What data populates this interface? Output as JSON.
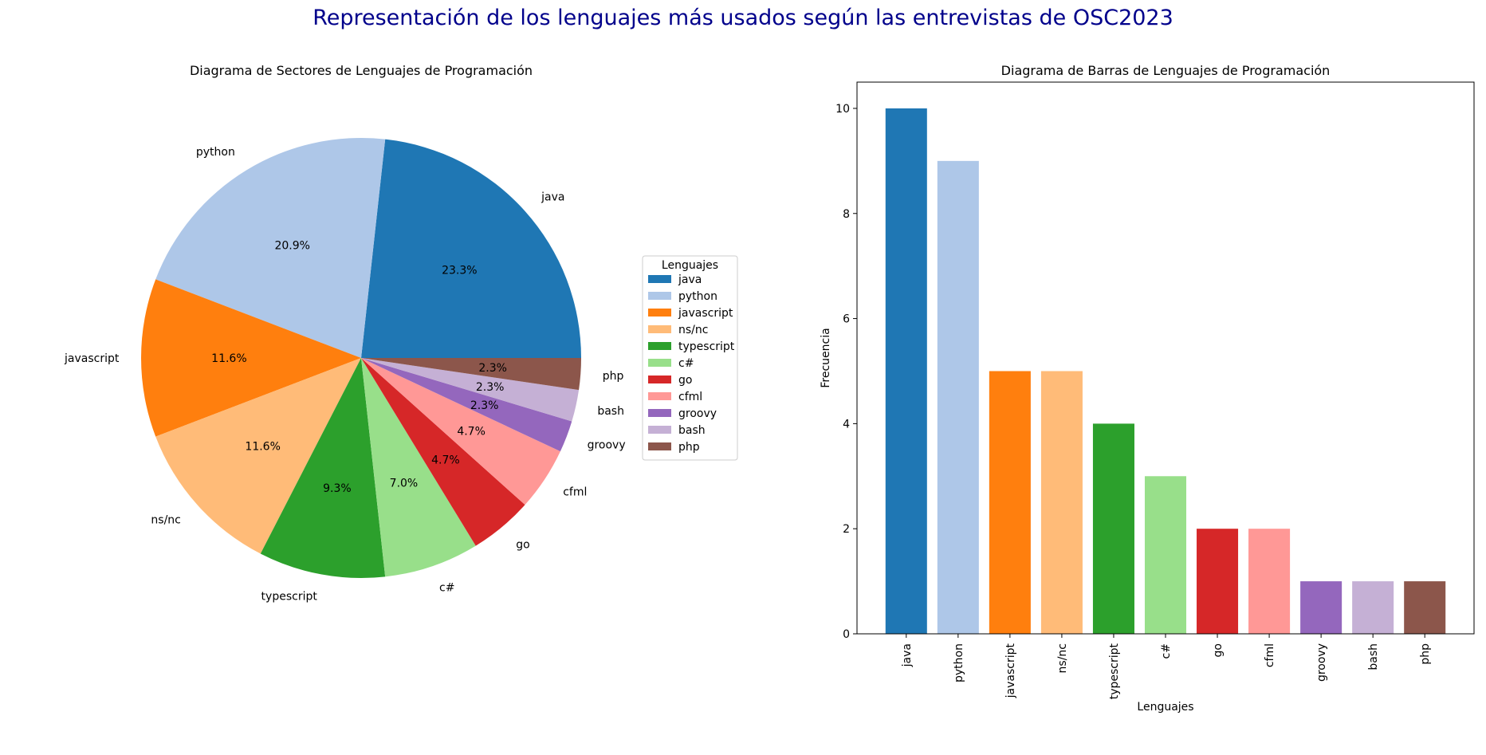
{
  "suptitle": "Representación de los lenguajes más usados según las entrevistas de OSC2023",
  "suptitle_color": "#00008b",
  "chart_data": [
    {
      "type": "pie",
      "title": "Diagrama de Sectores de Lenguajes de Programación",
      "categories": [
        "java",
        "python",
        "javascript",
        "ns/nc",
        "typescript",
        "c#",
        "go",
        "cfml",
        "groovy",
        "bash",
        "php"
      ],
      "values": [
        10,
        9,
        5,
        5,
        4,
        3,
        2,
        2,
        1,
        1,
        1
      ],
      "percent_labels": [
        "23.3%",
        "20.9%",
        "11.6%",
        "11.6%",
        "9.3%",
        "7.0%",
        "4.7%",
        "4.7%",
        "2.3%",
        "2.3%",
        "2.3%"
      ],
      "colors": [
        "#1f77b4",
        "#aec7e8",
        "#ff7f0e",
        "#ffbb78",
        "#2ca02c",
        "#98df8a",
        "#d62728",
        "#ff9896",
        "#9467bd",
        "#c5b0d5",
        "#8c564b"
      ],
      "legend": {
        "title": "Lenguajes",
        "position": "right"
      }
    },
    {
      "type": "bar",
      "title": "Diagrama de Barras de Lenguajes de Programación",
      "categories": [
        "java",
        "python",
        "javascript",
        "ns/nc",
        "typescript",
        "c#",
        "go",
        "cfml",
        "groovy",
        "bash",
        "php"
      ],
      "values": [
        10,
        9,
        5,
        5,
        4,
        3,
        2,
        2,
        1,
        1,
        1
      ],
      "colors": [
        "#1f77b4",
        "#aec7e8",
        "#ff7f0e",
        "#ffbb78",
        "#2ca02c",
        "#98df8a",
        "#d62728",
        "#ff9896",
        "#9467bd",
        "#c5b0d5",
        "#8c564b"
      ],
      "xlabel": "Lenguajes",
      "ylabel": "Frecuencia",
      "ylim": [
        0,
        10.5
      ],
      "yticks": [
        0,
        2,
        4,
        6,
        8,
        10
      ],
      "grid": false
    }
  ]
}
